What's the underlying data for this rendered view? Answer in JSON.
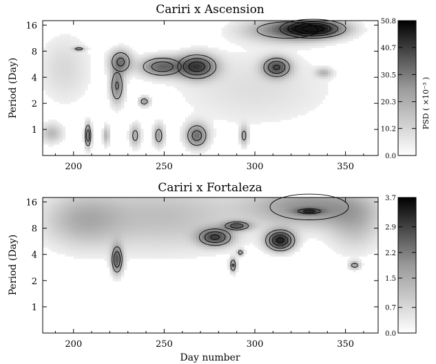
{
  "chart_data": [
    {
      "type": "heatmap",
      "title": "Cariri x Ascension",
      "xlabel": "",
      "ylabel": "Period (Day)",
      "xlim": [
        183,
        368
      ],
      "ylim": [
        0.5,
        18
      ],
      "y_scale": "log2",
      "x_ticks": [
        200,
        250,
        300,
        350
      ],
      "y_ticks": [
        1,
        2,
        4,
        8,
        16
      ],
      "colorbar": {
        "label": "PSD ( ×10⁻³ )",
        "min": 0.0,
        "max": 50.8,
        "ticks": [
          50.8,
          40.7,
          30.5,
          20.3,
          10.2,
          0.0
        ],
        "colormap": "white-to-black"
      },
      "regions": [
        {
          "x": 332,
          "y": 14.5,
          "sx": 11,
          "sy": 0.22,
          "amp": 50
        },
        {
          "x": 318,
          "y": 14,
          "sx": 16,
          "sy": 0.3,
          "amp": 22
        },
        {
          "x": 268,
          "y": 5.3,
          "sx": 7,
          "sy": 0.3,
          "amp": 40
        },
        {
          "x": 249,
          "y": 5.3,
          "sx": 8,
          "sy": 0.25,
          "amp": 30
        },
        {
          "x": 226,
          "y": 6,
          "sx": 4,
          "sy": 0.3,
          "amp": 26
        },
        {
          "x": 224,
          "y": 3.2,
          "sx": 2.5,
          "sy": 0.45,
          "amp": 24
        },
        {
          "x": 312,
          "y": 5.2,
          "sx": 5,
          "sy": 0.25,
          "amp": 35
        },
        {
          "x": 239,
          "y": 2.1,
          "sx": 2,
          "sy": 0.12,
          "amp": 18
        },
        {
          "x": 208,
          "y": 0.85,
          "sx": 1.2,
          "sy": 0.3,
          "amp": 30
        },
        {
          "x": 268,
          "y": 0.85,
          "sx": 4,
          "sy": 0.3,
          "amp": 28
        },
        {
          "x": 247,
          "y": 0.85,
          "sx": 2,
          "sy": 0.28,
          "amp": 18
        },
        {
          "x": 234,
          "y": 0.85,
          "sx": 2,
          "sy": 0.28,
          "amp": 16
        },
        {
          "x": 294,
          "y": 0.85,
          "sx": 1.5,
          "sy": 0.25,
          "amp": 16
        },
        {
          "x": 218,
          "y": 0.85,
          "sx": 1.2,
          "sy": 0.25,
          "amp": 14
        },
        {
          "x": 188,
          "y": 0.9,
          "sx": 4,
          "sy": 0.25,
          "amp": 12
        },
        {
          "x": 203,
          "y": 8.5,
          "sx": 2,
          "sy": 0.05,
          "amp": 20
        },
        {
          "x": 338,
          "y": 4.5,
          "sx": 3,
          "sy": 0.12,
          "amp": 12
        },
        {
          "x": 195,
          "y": 5,
          "sx": 10,
          "sy": 0.9,
          "amp": 6
        },
        {
          "x": 300,
          "y": 3,
          "sx": 30,
          "sy": 1.0,
          "amp": 5
        }
      ]
    },
    {
      "type": "heatmap",
      "title": "Cariri x Fortaleza",
      "xlabel": "Day number",
      "ylabel": "Period (Day)",
      "xlim": [
        183,
        368
      ],
      "ylim": [
        0.5,
        18
      ],
      "y_scale": "log2",
      "x_ticks": [
        200,
        250,
        300,
        350
      ],
      "y_ticks": [
        1,
        2,
        4,
        8,
        16
      ],
      "colorbar": {
        "label": "",
        "min": 0.0,
        "max": 3.7,
        "ticks": [
          3.7,
          2.9,
          2.2,
          1.5,
          0.7,
          0.0
        ],
        "colormap": "white-to-black"
      },
      "regions": [
        {
          "x": 314,
          "y": 5.8,
          "sx": 5,
          "sy": 0.25,
          "amp": 3.4
        },
        {
          "x": 278,
          "y": 6.3,
          "sx": 6,
          "sy": 0.22,
          "amp": 2.6
        },
        {
          "x": 290,
          "y": 8.5,
          "sx": 5,
          "sy": 0.12,
          "amp": 2.1
        },
        {
          "x": 224,
          "y": 3.5,
          "sx": 2,
          "sy": 0.35,
          "amp": 2.4
        },
        {
          "x": 288,
          "y": 3.0,
          "sx": 1.2,
          "sy": 0.18,
          "amp": 1.7
        },
        {
          "x": 292,
          "y": 4.2,
          "sx": 1.2,
          "sy": 0.08,
          "amp": 1.4
        },
        {
          "x": 330,
          "y": 12.5,
          "sx": 5,
          "sy": 0.08,
          "amp": 2.0
        },
        {
          "x": 330,
          "y": 14,
          "sx": 22,
          "sy": 0.5,
          "amp": 1.5
        },
        {
          "x": 205,
          "y": 10,
          "sx": 15,
          "sy": 0.7,
          "amp": 0.9
        },
        {
          "x": 250,
          "y": 11,
          "sx": 30,
          "sy": 0.9,
          "amp": 0.8
        },
        {
          "x": 355,
          "y": 3,
          "sx": 2,
          "sy": 0.1,
          "amp": 1.3
        },
        {
          "x": 355,
          "y": 9,
          "sx": 10,
          "sy": 0.7,
          "amp": 0.8
        }
      ]
    }
  ]
}
